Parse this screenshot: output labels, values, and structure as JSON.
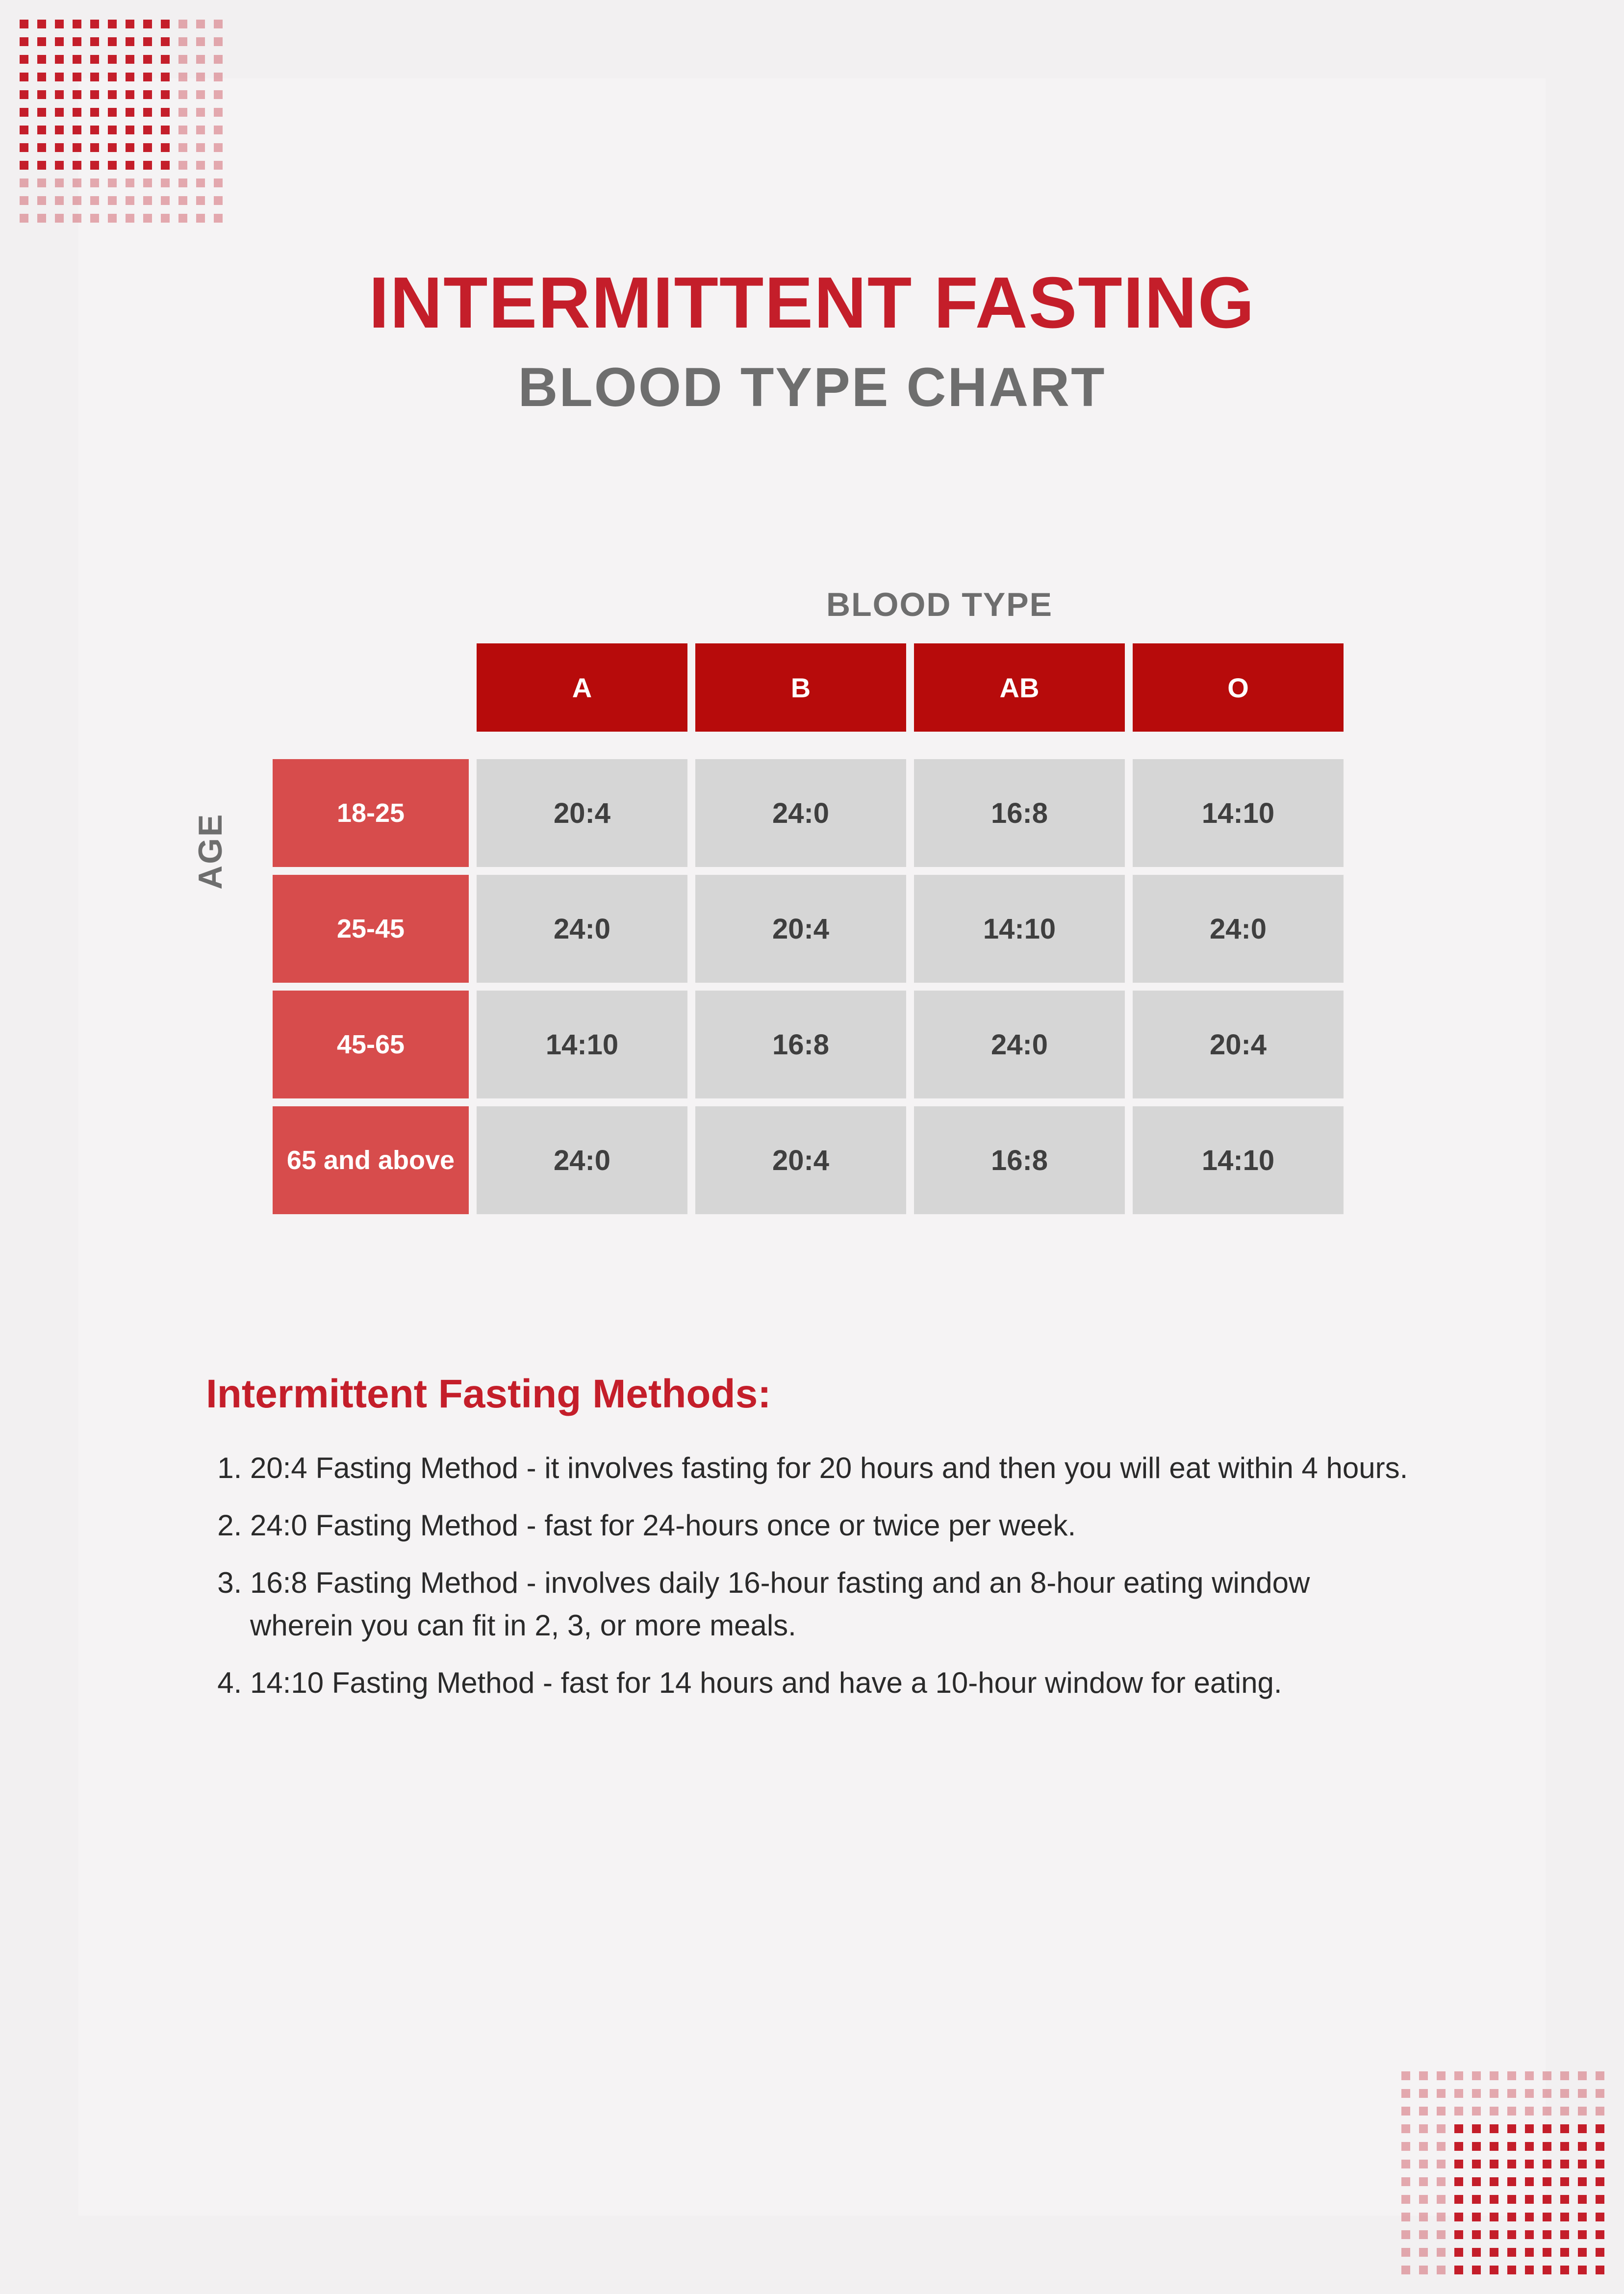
{
  "colors": {
    "primary_red": "#c41e2a",
    "dark_red": "#b70b0b",
    "light_red": "#d74c4c",
    "gray_text": "#6e6e6e",
    "cell_bg": "#d6d6d6",
    "cell_text": "#3f3f3f",
    "page_bg": "#f2f0f1",
    "inner_bg": "#f5f3f4",
    "body_text": "#2a2a2a"
  },
  "header": {
    "title_main": "INTERMITTENT FASTING",
    "title_sub": "BLOOD TYPE CHART"
  },
  "table": {
    "x_axis_label": "BLOOD TYPE",
    "y_axis_label": "AGE",
    "columns": [
      "A",
      "B",
      "AB",
      "O"
    ],
    "rows": [
      {
        "label": "18-25",
        "values": [
          "20:4",
          "24:0",
          "16:8",
          "14:10"
        ]
      },
      {
        "label": "25-45",
        "values": [
          "24:0",
          "20:4",
          "14:10",
          "24:0"
        ]
      },
      {
        "label": "45-65",
        "values": [
          "14:10",
          "16:8",
          "24:0",
          "20:4"
        ]
      },
      {
        "label": "65 and above",
        "values": [
          "24:0",
          "20:4",
          "16:8",
          "14:10"
        ]
      }
    ]
  },
  "methods": {
    "heading": "Intermittent Fasting Methods:",
    "items": [
      "20:4 Fasting Method - it involves fasting for 20 hours and then you will eat within 4 hours.",
      "24:0 Fasting Method - fast for 24-hours once or twice per week.",
      "16:8 Fasting Method - involves daily 16-hour fasting and an 8-hour eating window wherein you can fit in 2, 3, or more meals.",
      "14:10 Fasting Method - fast for 14 hours and have a 10-hour window for eating."
    ]
  }
}
